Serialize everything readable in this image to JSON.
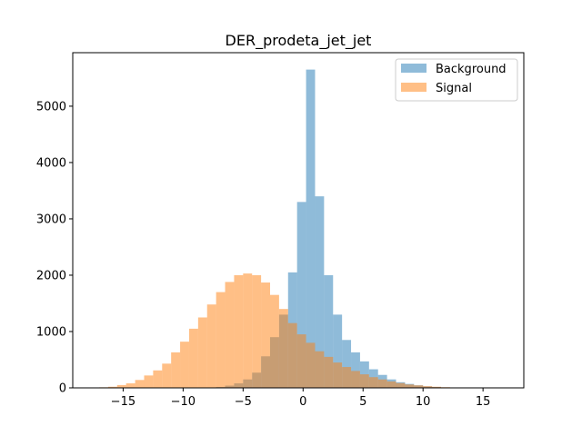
{
  "chart_data": {
    "type": "bar",
    "title": "DER_prodeta_jet_jet",
    "xlabel": "",
    "ylabel": "",
    "xlim": [
      -19.2,
      18.4
    ],
    "ylim": [
      0,
      5950
    ],
    "x_ticks": [
      -15,
      -10,
      -5,
      0,
      5,
      10,
      15
    ],
    "y_ticks": [
      0,
      1000,
      2000,
      3000,
      4000,
      5000
    ],
    "grid": false,
    "legend": "top-right",
    "bin_edges": [
      -17.0,
      -16.25,
      -15.5,
      -14.75,
      -14.0,
      -13.25,
      -12.5,
      -11.75,
      -11.0,
      -10.25,
      -9.5,
      -8.75,
      -8.0,
      -7.25,
      -6.5,
      -5.75,
      -5.0,
      -4.25,
      -3.5,
      -2.75,
      -2.0,
      -1.25,
      -0.5,
      0.25,
      1.0,
      1.75,
      2.5,
      3.25,
      4.0,
      4.75,
      5.5,
      6.25,
      7.0,
      7.75,
      8.5,
      9.25,
      10.0,
      10.75,
      11.5,
      12.25,
      13.0,
      13.75,
      14.5,
      15.25,
      16.0,
      16.75
    ],
    "series": [
      {
        "name": "Background",
        "color": "#1f77b4",
        "values": [
          0,
          0,
          0,
          0,
          0,
          0,
          0,
          0,
          0,
          0,
          0,
          0,
          5,
          15,
          40,
          80,
          150,
          270,
          560,
          900,
          1300,
          2050,
          3300,
          5650,
          3400,
          2000,
          1300,
          850,
          630,
          470,
          330,
          230,
          150,
          100,
          70,
          45,
          25,
          15,
          8,
          4,
          2,
          0,
          0,
          0,
          0
        ]
      },
      {
        "name": "Signal",
        "color": "#ff7f0e",
        "values": [
          10,
          20,
          50,
          80,
          140,
          220,
          310,
          430,
          630,
          820,
          1050,
          1250,
          1480,
          1700,
          1880,
          2000,
          2030,
          2000,
          1870,
          1650,
          1400,
          1150,
          950,
          800,
          650,
          550,
          450,
          370,
          300,
          240,
          190,
          150,
          115,
          85,
          60,
          45,
          30,
          20,
          12,
          8,
          5,
          3,
          2,
          1,
          0
        ]
      }
    ]
  }
}
